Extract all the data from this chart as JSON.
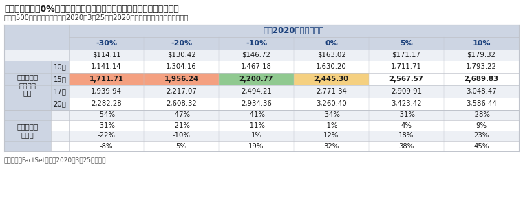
{
  "title": "美國股市已反映0%盈利增長率的預期；倘若盈利下降，合理值可能會走低",
  "subtitle": "（標普500指數情景分析：截至2020年3月25日，2020年盈利增長與遠期市盈率比較）",
  "source": "資料來源：FactSet。截至2020年3月25日數據。",
  "header_main": "標普2020年盈利增長率",
  "col_headers": [
    "-30%",
    "-20%",
    "-10%",
    "0%",
    "5%",
    "10%"
  ],
  "rows": {
    "eps": [
      "$114.11",
      "$130.42",
      "$146.72",
      "$163.02",
      "$171.17",
      "$179.32"
    ],
    "pe10": [
      "1,141.14",
      "1,304.16",
      "1,467.18",
      "1,630.20",
      "1,711.71",
      "1,793.22"
    ],
    "pe15": [
      "1,711.71",
      "1,956.24",
      "2,200.77",
      "2,445.30",
      "2,567.57",
      "2,689.83"
    ],
    "pe17": [
      "1,939.94",
      "2,217.07",
      "2,494.21",
      "2,771.34",
      "2,909.91",
      "3,048.47"
    ],
    "pe20": [
      "2,282.28",
      "2,608.32",
      "2,934.36",
      "3,260.40",
      "3,423.42",
      "3,586.44"
    ],
    "ret1": [
      "-54%",
      "-47%",
      "-41%",
      "-34%",
      "-31%",
      "-28%"
    ],
    "ret2": [
      "-31%",
      "-21%",
      "-11%",
      "-1%",
      "4%",
      "9%"
    ],
    "ret3": [
      "-22%",
      "-10%",
      "1%",
      "12%",
      "18%",
      "23%"
    ],
    "ret4": [
      "-8%",
      "5%",
      "19%",
      "32%",
      "38%",
      "45%"
    ]
  },
  "pe_labels": [
    "10倍",
    "15倍",
    "17倍",
    "20倍"
  ],
  "pe_left_label": "標普指數遠\n期市盈率\n倍數",
  "ret_left_label": "標普指數未\n來回報",
  "highlight_cells": {
    "pe15_col0": "#f4a080",
    "pe15_col1": "#f4a080",
    "pe15_col2": "#90c990",
    "pe15_col3": "#f5d080"
  },
  "colors": {
    "title": "#1a1a1a",
    "subtitle": "#333333",
    "header_bg": "#cdd5e3",
    "header_text": "#1a3f7a",
    "col_header_text": "#1a3f7a",
    "row_label_bg": "#cdd5e3",
    "row_label_text": "#1a1a1a",
    "cell_bg_white": "#ffffff",
    "cell_bg_gray": "#edf0f5",
    "cell_text": "#1a1a1a",
    "border": "#c0c4cc",
    "source_text": "#555555"
  },
  "figsize": [
    7.6,
    3.04
  ],
  "dpi": 100
}
